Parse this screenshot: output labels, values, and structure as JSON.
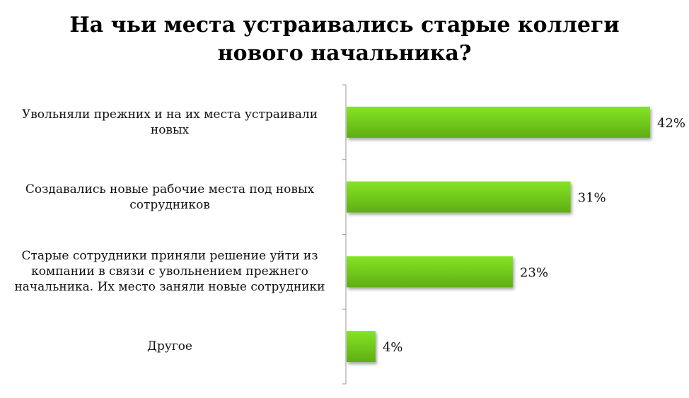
{
  "chart_data": {
    "type": "bar",
    "orientation": "horizontal",
    "title": [
      "На чьи места устраивались старые коллеги",
      "нового начальника?"
    ],
    "xlabel": "",
    "ylabel": "",
    "xlim": [
      0,
      42
    ],
    "grid": false,
    "legend": "none",
    "categories": [
      [
        "Увольняли прежних и на их места устраивали",
        "новых"
      ],
      [
        "Создавались новые рабочие места под новых",
        "сотрудников"
      ],
      [
        "Старые сотрудники приняли решение уйти из",
        "компании в связи с увольнением прежнего",
        "начальника. Их место заняли новые сотрудники"
      ],
      [
        "Другое"
      ]
    ],
    "values": [
      42,
      31,
      23,
      4
    ],
    "data_labels": [
      "42%",
      "31%",
      "23%",
      "4%"
    ],
    "colors": {
      "bar_light": "#84e424",
      "bar_dark": "#5fae14",
      "axis": "#999999"
    }
  }
}
